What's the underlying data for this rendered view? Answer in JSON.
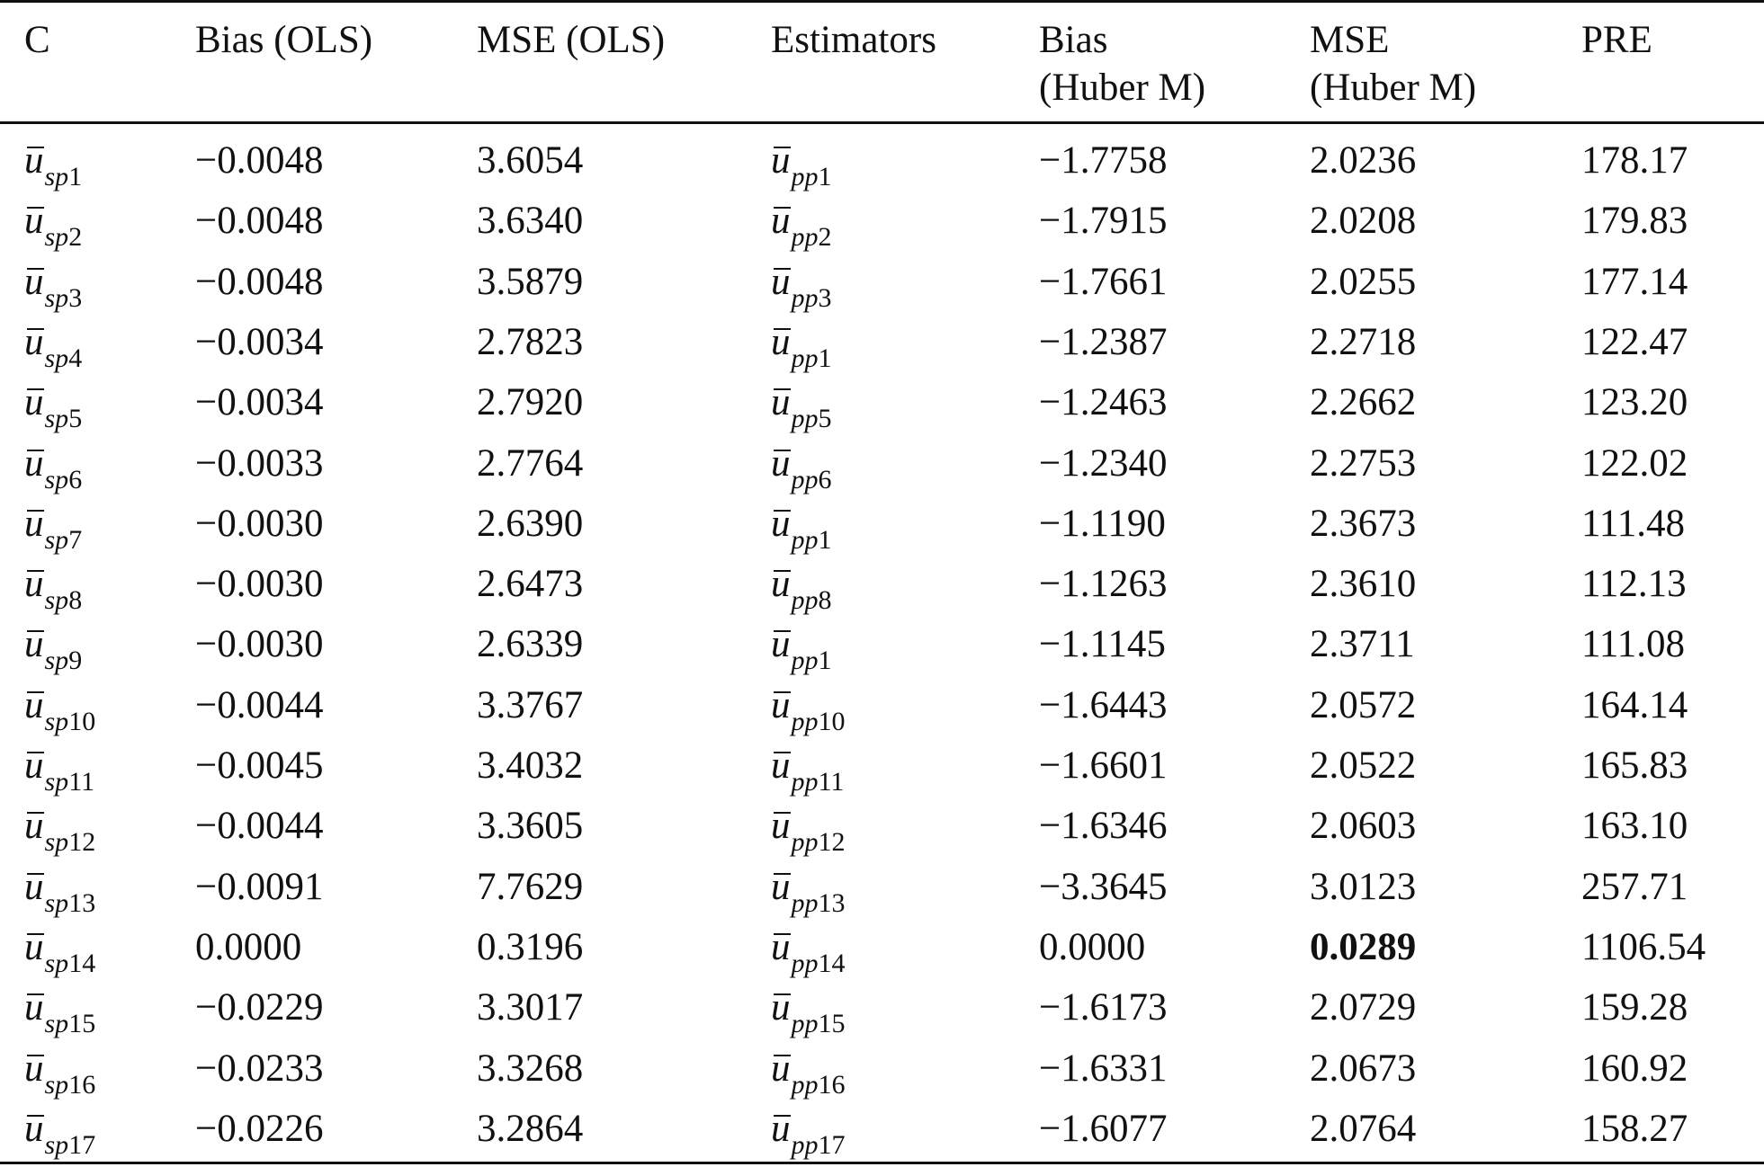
{
  "table": {
    "headers": {
      "c": "C",
      "bias_ols": "Bias (OLS)",
      "mse_ols": "MSE (OLS)",
      "estimators": "Estimators",
      "bias_huber_line1": "Bias",
      "bias_huber_line2": "(Huber M)",
      "mse_huber_line1": "MSE",
      "mse_huber_line2": "(Huber M)",
      "pre": "PRE"
    },
    "rows": [
      {
        "c_base": "u",
        "c_sub_letters": "sp",
        "c_sub_num": "1",
        "bias_ols": "−0.0048",
        "mse_ols": "3.6054",
        "est_base": "u",
        "est_sub_letters": "pp",
        "est_sub_num": "1",
        "bias_huber": "−1.7758",
        "mse_huber": "2.0236",
        "pre": "178.17"
      },
      {
        "c_base": "u",
        "c_sub_letters": "sp",
        "c_sub_num": "2",
        "bias_ols": "−0.0048",
        "mse_ols": "3.6340",
        "est_base": "u",
        "est_sub_letters": "pp",
        "est_sub_num": "2",
        "bias_huber": "−1.7915",
        "mse_huber": "2.0208",
        "pre": "179.83"
      },
      {
        "c_base": "u",
        "c_sub_letters": "sp",
        "c_sub_num": "3",
        "bias_ols": "−0.0048",
        "mse_ols": "3.5879",
        "est_base": "u",
        "est_sub_letters": "pp",
        "est_sub_num": "3",
        "bias_huber": "−1.7661",
        "mse_huber": "2.0255",
        "pre": "177.14"
      },
      {
        "c_base": "u",
        "c_sub_letters": "sp",
        "c_sub_num": "4",
        "bias_ols": "−0.0034",
        "mse_ols": "2.7823",
        "est_base": "u",
        "est_sub_letters": "pp",
        "est_sub_num": "1",
        "bias_huber": "−1.2387",
        "mse_huber": "2.2718",
        "pre": "122.47"
      },
      {
        "c_base": "u",
        "c_sub_letters": "sp",
        "c_sub_num": "5",
        "bias_ols": "−0.0034",
        "mse_ols": "2.7920",
        "est_base": "u",
        "est_sub_letters": "pp",
        "est_sub_num": "5",
        "bias_huber": "−1.2463",
        "mse_huber": "2.2662",
        "pre": "123.20"
      },
      {
        "c_base": "u",
        "c_sub_letters": "sp",
        "c_sub_num": "6",
        "bias_ols": "−0.0033",
        "mse_ols": "2.7764",
        "est_base": "u",
        "est_sub_letters": "pp",
        "est_sub_num": "6",
        "bias_huber": "−1.2340",
        "mse_huber": "2.2753",
        "pre": "122.02"
      },
      {
        "c_base": "u",
        "c_sub_letters": "sp",
        "c_sub_num": "7",
        "bias_ols": "−0.0030",
        "mse_ols": "2.6390",
        "est_base": "u",
        "est_sub_letters": "pp",
        "est_sub_num": "1",
        "bias_huber": "−1.1190",
        "mse_huber": "2.3673",
        "pre": "111.48"
      },
      {
        "c_base": "u",
        "c_sub_letters": "sp",
        "c_sub_num": "8",
        "bias_ols": "−0.0030",
        "mse_ols": "2.6473",
        "est_base": "u",
        "est_sub_letters": "pp",
        "est_sub_num": "8",
        "bias_huber": "−1.1263",
        "mse_huber": "2.3610",
        "pre": "112.13"
      },
      {
        "c_base": "u",
        "c_sub_letters": "sp",
        "c_sub_num": "9",
        "bias_ols": "−0.0030",
        "mse_ols": "2.6339",
        "est_base": "u",
        "est_sub_letters": "pp",
        "est_sub_num": "1",
        "bias_huber": "−1.1145",
        "mse_huber": "2.3711",
        "pre": "111.08"
      },
      {
        "c_base": "u",
        "c_sub_letters": "sp",
        "c_sub_num": "10",
        "bias_ols": "−0.0044",
        "mse_ols": "3.3767",
        "est_base": "u",
        "est_sub_letters": "pp",
        "est_sub_num": "10",
        "bias_huber": "−1.6443",
        "mse_huber": "2.0572",
        "pre": "164.14"
      },
      {
        "c_base": "u",
        "c_sub_letters": "sp",
        "c_sub_num": "11",
        "bias_ols": "−0.0045",
        "mse_ols": "3.4032",
        "est_base": "u",
        "est_sub_letters": "pp",
        "est_sub_num": "11",
        "bias_huber": "−1.6601",
        "mse_huber": "2.0522",
        "pre": "165.83"
      },
      {
        "c_base": "u",
        "c_sub_letters": "sp",
        "c_sub_num": "12",
        "bias_ols": "−0.0044",
        "mse_ols": "3.3605",
        "est_base": "u",
        "est_sub_letters": "pp",
        "est_sub_num": "12",
        "bias_huber": "−1.6346",
        "mse_huber": "2.0603",
        "pre": "163.10"
      },
      {
        "c_base": "u",
        "c_sub_letters": "sp",
        "c_sub_num": "13",
        "bias_ols": "−0.0091",
        "mse_ols": "7.7629",
        "est_base": "u",
        "est_sub_letters": "pp",
        "est_sub_num": "13",
        "bias_huber": "−3.3645",
        "mse_huber": "3.0123",
        "pre": "257.71"
      },
      {
        "c_base": "u",
        "c_sub_letters": "sp",
        "c_sub_num": "14",
        "bias_ols": "0.0000",
        "mse_ols": "0.3196",
        "est_base": "u",
        "est_sub_letters": "pp",
        "est_sub_num": "14",
        "bias_huber": "0.0000",
        "mse_huber": "0.0289",
        "mse_huber_bold": true,
        "pre": "1106.54"
      },
      {
        "c_base": "u",
        "c_sub_letters": "sp",
        "c_sub_num": "15",
        "bias_ols": "−0.0229",
        "mse_ols": "3.3017",
        "est_base": "u",
        "est_sub_letters": "pp",
        "est_sub_num": "15",
        "bias_huber": "−1.6173",
        "mse_huber": "2.0729",
        "pre": "159.28"
      },
      {
        "c_base": "u",
        "c_sub_letters": "sp",
        "c_sub_num": "16",
        "bias_ols": "−0.0233",
        "mse_ols": "3.3268",
        "est_base": "u",
        "est_sub_letters": "pp",
        "est_sub_num": "16",
        "bias_huber": "−1.6331",
        "mse_huber": "2.0673",
        "pre": "160.92"
      },
      {
        "c_base": "u",
        "c_sub_letters": "sp",
        "c_sub_num": "17",
        "bias_ols": "−0.0226",
        "mse_ols": "3.2864",
        "est_base": "u",
        "est_sub_letters": "pp",
        "est_sub_num": "17",
        "bias_huber": "−1.6077",
        "mse_huber": "2.0764",
        "pre": "158.27"
      }
    ]
  }
}
